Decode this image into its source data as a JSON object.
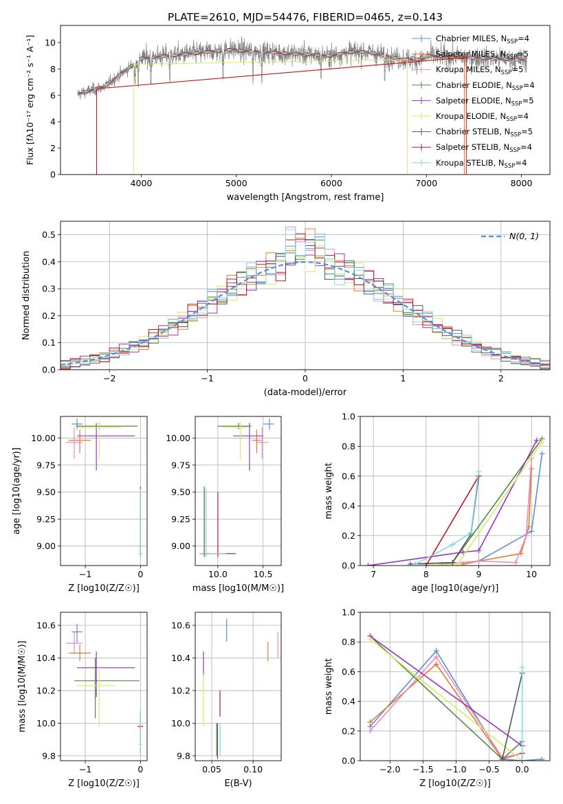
{
  "figure": {
    "title": "PLATE=2610, MJD=54476, FIBERID=0465, z=0.143"
  },
  "colors": {
    "c1": "#5b8bd9",
    "c2": "#e07b2c",
    "c3": "#e98bbf",
    "c4": "#4d8c3f",
    "c5": "#9b30c4",
    "c6": "#d7e86a",
    "c7": "#555555",
    "c8": "#c0161f",
    "c9": "#7ed8e0",
    "data": "#7f7f7f",
    "grid": "#b0b0b0",
    "gauss": "#5b8bd9"
  },
  "models": [
    {
      "name": "Chabrier MILES, N",
      "sub": "SSP",
      "suffix": "=4",
      "color": "#5b8bd9"
    },
    {
      "name": "Salpeter MILES, N",
      "sub": "SSP",
      "suffix": "=5",
      "color": "#e07b2c"
    },
    {
      "name": "Kroupa MILES, N",
      "sub": "SSP",
      "suffix": "=5",
      "color": "#e98bbf"
    },
    {
      "name": "Chabrier ELODIE, N",
      "sub": "SSP",
      "suffix": "=4",
      "color": "#4d8c3f"
    },
    {
      "name": "Salpeter ELODIE, N",
      "sub": "SSP",
      "suffix": "=5",
      "color": "#9b30c4"
    },
    {
      "name": "Kroupa ELODIE, N",
      "sub": "SSP",
      "suffix": "=4",
      "color": "#d7e86a"
    },
    {
      "name": "Chabrier STELIB, N",
      "sub": "SSP",
      "suffix": "=5",
      "color": "#555555"
    },
    {
      "name": "Salpeter STELIB, N",
      "sub": "SSP",
      "suffix": "=4",
      "color": "#c0161f"
    },
    {
      "name": "Kroupa STELIB, N",
      "sub": "SSP",
      "suffix": "=4",
      "color": "#7ed8e0"
    }
  ],
  "chart_data": [
    {
      "id": "spectrum",
      "type": "line",
      "xlabel": "wavelength [Angstrom, rest frame]",
      "ylabel": "Flux [fλ10⁻¹⁷ erg cm⁻² s⁻¹ A⁻¹]",
      "xlim": [
        3150,
        8300
      ],
      "ylim": [
        0,
        11.3
      ],
      "xticks": [
        4000,
        5000,
        6000,
        7000,
        8000
      ],
      "yticks": [
        0,
        2,
        4,
        6,
        8,
        10
      ],
      "data_range": [
        3330,
        8060
      ],
      "model_cutoffs": [
        {
          "lo": 3530,
          "hi": 7400,
          "color": "#e07b2c"
        },
        {
          "lo": 3530,
          "hi": 7420,
          "color": "#c0161f"
        },
        {
          "lo": 3920,
          "hi": 6800,
          "color": "#d7e86a"
        }
      ],
      "grid": false,
      "legend": "top-right"
    },
    {
      "id": "residuals",
      "type": "step-histogram",
      "xlabel": "(data-model)/error",
      "ylabel": "Normed distribution",
      "xlim": [
        -2.5,
        2.5
      ],
      "ylim": [
        0,
        0.55
      ],
      "xticks": [
        -2,
        -1,
        0,
        1,
        2
      ],
      "yticks": [
        0.0,
        0.1,
        0.2,
        0.3,
        0.4,
        0.5
      ],
      "bin_width": 0.1,
      "gauss_label": "N(0, 1)",
      "grid": true,
      "legend": "top-right"
    },
    {
      "id": "age_vs_Z",
      "type": "errorbar",
      "xlabel": "Z [log10(Z/Z☉)]",
      "ylabel": "age  [log10(age/yr)]",
      "xlim": [
        -1.45,
        0.12
      ],
      "ylim": [
        8.82,
        10.2
      ],
      "xticks": [
        -1,
        0
      ],
      "yticks": [
        9.0,
        9.25,
        9.5,
        9.75,
        10.0
      ],
      "points": [
        {
          "x": -1.15,
          "y": 10.13,
          "xerr": [
            0.1,
            0.1
          ],
          "yerr": [
            0.05,
            0.05
          ],
          "color": "#5b8bd9"
        },
        {
          "x": -1.1,
          "y": 9.98,
          "xerr": [
            0.2,
            0.2
          ],
          "yerr": [
            0.12,
            0.1
          ],
          "color": "#e07b2c"
        },
        {
          "x": -1.2,
          "y": 9.96,
          "xerr": [
            0.15,
            0.15
          ],
          "yerr": [
            0.15,
            0.14
          ],
          "color": "#e98bbf"
        },
        {
          "x": -0.75,
          "y": 10.11,
          "xerr": [
            0.42,
            0.7
          ],
          "yerr": [
            0.03,
            0.03
          ],
          "color": "#4d8c3f"
        },
        {
          "x": -0.8,
          "y": 10.02,
          "xerr": [
            0.35,
            0.7
          ],
          "yerr": [
            0.32,
            0.12
          ],
          "color": "#9b30c4"
        },
        {
          "x": -0.75,
          "y": 10.1,
          "xerr": [
            0.4,
            0.4
          ],
          "yerr": [
            0.3,
            0.05
          ],
          "color": "#d7e86a"
        },
        {
          "x": 0.0,
          "y": 8.93,
          "xerr": [
            0.01,
            0.01
          ],
          "yerr": [
            0.03,
            0.62
          ],
          "color": "#555555"
        },
        {
          "x": 0.0,
          "y": 8.93,
          "xerr": [
            0.01,
            0.01
          ],
          "yerr": [
            0.02,
            0.57
          ],
          "color": "#c0161f"
        },
        {
          "x": 0.0,
          "y": 8.93,
          "xerr": [
            0.03,
            0.03
          ],
          "yerr": [
            0.03,
            0.6
          ],
          "color": "#7ed8e0"
        }
      ],
      "grid": true
    },
    {
      "id": "age_vs_mass",
      "type": "errorbar",
      "xlabel": "mass [log10(M/M☉)]",
      "ylabel": "",
      "xlim": [
        9.75,
        10.7
      ],
      "ylim": [
        8.82,
        10.2
      ],
      "xticks": [
        10.0,
        10.5
      ],
      "yticks": [
        9.0,
        9.25,
        9.5,
        9.75,
        10.0
      ],
      "points": [
        {
          "x": 10.57,
          "y": 10.13,
          "xerr": [
            0.07,
            0.05
          ],
          "yerr": [
            0.05,
            0.05
          ],
          "color": "#5b8bd9"
        },
        {
          "x": 10.43,
          "y": 9.98,
          "xerr": [
            0.05,
            0.05
          ],
          "yerr": [
            0.12,
            0.1
          ],
          "color": "#e07b2c"
        },
        {
          "x": 10.49,
          "y": 9.96,
          "xerr": [
            0.07,
            0.07
          ],
          "yerr": [
            0.15,
            0.14
          ],
          "color": "#e98bbf"
        },
        {
          "x": 10.23,
          "y": 10.11,
          "xerr": [
            0.23,
            0.14
          ],
          "yerr": [
            0.03,
            0.03
          ],
          "color": "#4d8c3f"
        },
        {
          "x": 10.35,
          "y": 10.02,
          "xerr": [
            0.18,
            0.15
          ],
          "yerr": [
            0.32,
            0.12
          ],
          "color": "#9b30c4"
        },
        {
          "x": 10.25,
          "y": 10.1,
          "xerr": [
            0.2,
            0.08
          ],
          "yerr": [
            0.3,
            0.05
          ],
          "color": "#d7e86a"
        },
        {
          "x": 9.85,
          "y": 8.93,
          "xerr": [
            0.05,
            0.05
          ],
          "yerr": [
            0.03,
            0.62
          ],
          "color": "#555555"
        },
        {
          "x": 10.0,
          "y": 8.93,
          "xerr": [
            0.2,
            0.2
          ],
          "yerr": [
            0.03,
            0.57
          ],
          "color": "#c0161f"
        },
        {
          "x": 9.87,
          "y": 8.93,
          "xerr": [
            0.07,
            0.22
          ],
          "yerr": [
            0.03,
            0.6
          ],
          "color": "#7ed8e0"
        }
      ],
      "grid": true
    },
    {
      "id": "sfh_age",
      "type": "line",
      "xlabel": "age  [log10(age/yr)]",
      "ylabel": "mass weight",
      "xlim": [
        6.75,
        10.35
      ],
      "ylim": [
        0,
        1.0
      ],
      "xticks": [
        7,
        8,
        9,
        10
      ],
      "yticks": [
        0.0,
        0.2,
        0.4,
        0.6,
        0.8,
        1.0
      ],
      "series": [
        {
          "color": "#5b8bd9",
          "x": [
            8.7,
            9.0,
            10.0,
            10.2
          ],
          "y": [
            0.01,
            0.03,
            0.23,
            0.75
          ]
        },
        {
          "color": "#e07b2c",
          "x": [
            8.7,
            9.0,
            9.8,
            9.95,
            10.0
          ],
          "y": [
            0.01,
            0.03,
            0.08,
            0.26,
            0.65
          ]
        },
        {
          "color": "#e98bbf",
          "x": [
            8.3,
            9.0,
            9.7,
            9.9,
            10.0
          ],
          "y": [
            0.01,
            0.03,
            0.02,
            0.2,
            0.72
          ]
        },
        {
          "color": "#4d8c3f",
          "x": [
            7.8,
            8.5,
            10.2
          ],
          "y": [
            0.01,
            0.02,
            0.85
          ]
        },
        {
          "color": "#9b30c4",
          "x": [
            6.9,
            8.7,
            9.0,
            10.1
          ],
          "y": [
            0.0,
            0.09,
            0.1,
            0.84
          ]
        },
        {
          "color": "#d7e86a",
          "x": [
            8.0,
            8.6,
            10.2
          ],
          "y": [
            0.0,
            0.01,
            0.83
          ]
        },
        {
          "color": "#555555",
          "x": [
            7.7,
            8.5,
            8.85,
            9.0
          ],
          "y": [
            0.01,
            0.02,
            0.21,
            0.6
          ]
        },
        {
          "color": "#c0161f",
          "x": [
            8.0,
            9.0
          ],
          "y": [
            0.0,
            0.6
          ]
        },
        {
          "color": "#7ed8e0",
          "x": [
            7.8,
            8.5,
            8.85,
            9.0
          ],
          "y": [
            0.01,
            0.14,
            0.22,
            0.63
          ]
        }
      ],
      "grid": true
    },
    {
      "id": "mass_vs_Z",
      "type": "errorbar",
      "xlabel": "Z [log10(Z/Z☉)]",
      "ylabel": "mass [log10(M/M☉)]",
      "xlim": [
        -1.45,
        0.12
      ],
      "ylim": [
        9.77,
        10.68
      ],
      "xticks": [
        -1,
        0
      ],
      "yticks": [
        9.8,
        10.0,
        10.2,
        10.4,
        10.6
      ],
      "points": [
        {
          "x": -1.15,
          "y": 10.56,
          "xerr": [
            0.1,
            0.1
          ],
          "yerr": [
            0.07,
            0.05
          ],
          "color": "#5b8bd9"
        },
        {
          "x": -1.1,
          "y": 10.43,
          "xerr": [
            0.2,
            0.2
          ],
          "yerr": [
            0.05,
            0.05
          ],
          "color": "#e07b2c"
        },
        {
          "x": -1.2,
          "y": 10.49,
          "xerr": [
            0.15,
            0.15
          ],
          "yerr": [
            0.07,
            0.07
          ],
          "color": "#e98bbf"
        },
        {
          "x": -0.82,
          "y": 10.26,
          "xerr": [
            0.38,
            0.8
          ],
          "yerr": [
            0.23,
            0.14
          ],
          "color": "#4d8c3f"
        },
        {
          "x": -0.8,
          "y": 10.34,
          "xerr": [
            0.35,
            0.7
          ],
          "yerr": [
            0.18,
            0.1
          ],
          "color": "#9b30c4"
        },
        {
          "x": -0.75,
          "y": 10.23,
          "xerr": [
            0.4,
            0.3
          ],
          "yerr": [
            0.25,
            0.12
          ],
          "color": "#d7e86a"
        },
        {
          "x": 0.0,
          "y": 9.83,
          "xerr": [
            0.01,
            0.01
          ],
          "yerr": [
            0.02,
            0.02
          ],
          "color": "#555555"
        },
        {
          "x": 0.0,
          "y": 9.98,
          "xerr": [
            0.05,
            0.05
          ],
          "yerr": [
            0.1,
            0.09
          ],
          "color": "#c0161f"
        },
        {
          "x": 0.0,
          "y": 9.87,
          "xerr": [
            0.03,
            0.03
          ],
          "yerr": [
            0.07,
            0.22
          ],
          "color": "#7ed8e0"
        }
      ],
      "grid": true
    },
    {
      "id": "mass_vs_EBV",
      "type": "errorbar",
      "xlabel": "E(B-V)",
      "ylabel": "",
      "xlim": [
        0.03,
        0.134
      ],
      "ylim": [
        9.77,
        10.68
      ],
      "xticks": [
        0.05,
        0.1
      ],
      "xticklabels": [
        "0.05",
        "0.10"
      ],
      "yticks": [
        9.8,
        10.0,
        10.2,
        10.4,
        10.6
      ],
      "points": [
        {
          "x": 0.068,
          "y": 10.57,
          "xerr": [
            0,
            0
          ],
          "yerr": [
            0.07,
            0.07
          ],
          "color": "#5b8bd9"
        },
        {
          "x": 0.118,
          "y": 10.44,
          "xerr": [
            0,
            0
          ],
          "yerr": [
            0.06,
            0.06
          ],
          "color": "#e07b2c"
        },
        {
          "x": 0.13,
          "y": 10.48,
          "xerr": [
            0,
            0
          ],
          "yerr": [
            0.08,
            0.08
          ],
          "color": "#e98bbf"
        },
        {
          "x": 0.056,
          "y": 9.9,
          "xerr": [
            0,
            0
          ],
          "yerr": [
            0.1,
            0.1
          ],
          "color": "#4d8c3f"
        },
        {
          "x": 0.04,
          "y": 10.36,
          "xerr": [
            0,
            0
          ],
          "yerr": [
            0.08,
            0.08
          ],
          "color": "#9b30c4"
        },
        {
          "x": 0.04,
          "y": 10.14,
          "xerr": [
            0,
            0
          ],
          "yerr": [
            0.16,
            0.16
          ],
          "color": "#d7e86a"
        },
        {
          "x": 0.057,
          "y": 9.89,
          "xerr": [
            0,
            0
          ],
          "yerr": [
            0.11,
            0.11
          ],
          "color": "#555555"
        },
        {
          "x": 0.06,
          "y": 10.12,
          "xerr": [
            0,
            0
          ],
          "yerr": [
            0.08,
            0.08
          ],
          "color": "#c0161f"
        },
        {
          "x": 0.06,
          "y": 9.9,
          "xerr": [
            0,
            0
          ],
          "yerr": [
            0.1,
            0.1
          ],
          "color": "#7ed8e0"
        }
      ],
      "grid": true
    },
    {
      "id": "sfh_Z",
      "type": "line",
      "xlabel": "Z [log10(Z/Z☉)]",
      "ylabel": "mass weight",
      "xlim": [
        -2.45,
        0.42
      ],
      "ylim": [
        0,
        1.0
      ],
      "xticks": [
        -2.0,
        -1.5,
        -1.0,
        -0.5,
        0.0
      ],
      "yticks": [
        0.0,
        0.2,
        0.4,
        0.6,
        0.8,
        1.0
      ],
      "series": [
        {
          "color": "#5b8bd9",
          "x": [
            -2.3,
            -1.3,
            -0.3,
            0.0,
            0.3
          ],
          "y": [
            0.23,
            0.74,
            0.01,
            0.0,
            0.01
          ]
        },
        {
          "color": "#e07b2c",
          "x": [
            -2.3,
            -1.3,
            -0.3,
            0.0
          ],
          "y": [
            0.26,
            0.65,
            0.01,
            0.05
          ]
        },
        {
          "color": "#e98bbf",
          "x": [
            -2.3,
            -1.3,
            -0.3,
            0.0
          ],
          "y": [
            0.2,
            0.7,
            0.02,
            0.05
          ]
        },
        {
          "color": "#4d8c3f",
          "x": [
            -2.3,
            -0.3,
            0.0
          ],
          "y": [
            0.84,
            0.01,
            0.13
          ]
        },
        {
          "color": "#9b30c4",
          "x": [
            -2.3,
            0.0
          ],
          "y": [
            0.84,
            0.1
          ]
        },
        {
          "color": "#d7e86a",
          "x": [
            -2.3,
            0.0
          ],
          "y": [
            0.82,
            0.0
          ]
        },
        {
          "color": "#555555",
          "x": [
            -0.3,
            0.0
          ],
          "y": [
            0.01,
            0.59
          ]
        },
        {
          "color": "#c0161f",
          "x": [
            0.0,
            0.0
          ],
          "y": [
            0.0,
            0.05
          ]
        },
        {
          "color": "#7ed8e0",
          "x": [
            0.0,
            0.0
          ],
          "y": [
            0.0,
            0.63
          ]
        }
      ],
      "grid": true
    }
  ]
}
